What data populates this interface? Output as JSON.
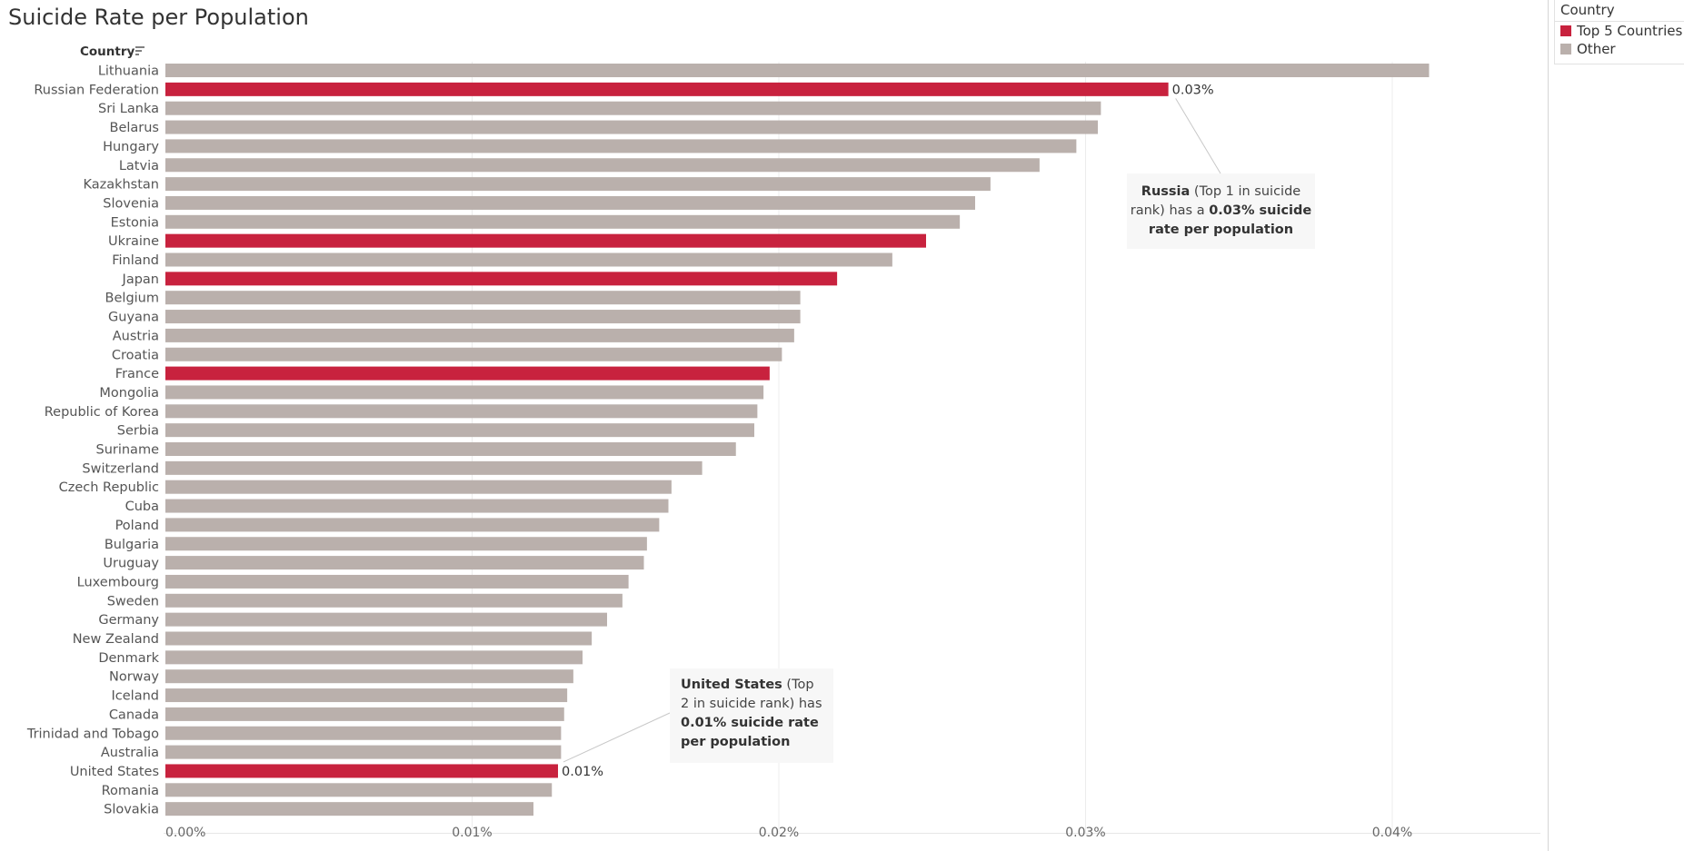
{
  "title": "Suicide Rate per Population",
  "legend": {
    "title": "Country",
    "items": [
      {
        "label": "Top 5 Countries",
        "color": "#c8223e"
      },
      {
        "label": "Other",
        "color": "#bab0ac"
      }
    ]
  },
  "annotations": {
    "russia": {
      "bold1": "Russia",
      "text1": " (Top 1 in suicide rank) has a ",
      "bold2": "0.03% suicide rate per population"
    },
    "us": {
      "bold1": "United States",
      "text1": " (Top 2 in suicide rank) has ",
      "bold2": "0.01% suicide rate per population"
    }
  },
  "chart_data": {
    "type": "bar",
    "orientation": "horizontal",
    "title": "Suicide Rate per Population",
    "ylabel": "Country",
    "xlim": [
      0,
      0.0445
    ],
    "xticks": [
      "0.00%",
      "0.01%",
      "0.02%",
      "0.03%",
      "0.04%"
    ],
    "grid": true,
    "legend_position": "top-right",
    "categories": [
      "Lithuania",
      "Russian Federation",
      "Sri Lanka",
      "Belarus",
      "Hungary",
      "Latvia",
      "Kazakhstan",
      "Slovenia",
      "Estonia",
      "Ukraine",
      "Finland",
      "Japan",
      "Belgium",
      "Guyana",
      "Austria",
      "Croatia",
      "France",
      "Mongolia",
      "Republic of Korea",
      "Serbia",
      "Suriname",
      "Switzerland",
      "Czech Republic",
      "Cuba",
      "Poland",
      "Bulgaria",
      "Uruguay",
      "Luxembourg",
      "Sweden",
      "Germany",
      "New Zealand",
      "Denmark",
      "Norway",
      "Iceland",
      "Canada",
      "Trinidad and Tobago",
      "Australia",
      "United States",
      "Romania",
      "Slovakia"
    ],
    "values": [
      0.0412,
      0.0327,
      0.0305,
      0.0304,
      0.0297,
      0.0285,
      0.0269,
      0.0264,
      0.0259,
      0.0248,
      0.0237,
      0.0219,
      0.0207,
      0.0207,
      0.0205,
      0.0201,
      0.0197,
      0.0195,
      0.0193,
      0.0192,
      0.0186,
      0.0175,
      0.0165,
      0.0164,
      0.0161,
      0.0157,
      0.0156,
      0.0151,
      0.0149,
      0.0144,
      0.0139,
      0.0136,
      0.0133,
      0.0131,
      0.013,
      0.0129,
      0.0129,
      0.0128,
      0.0126,
      0.012
    ],
    "highlight": [
      "Russian Federation",
      "Ukraine",
      "Japan",
      "France",
      "United States"
    ],
    "data_labels": {
      "Russian Federation": "0.03%",
      "United States": "0.01%"
    },
    "colors": {
      "highlight": "#c8223e",
      "other": "#bab0ac"
    }
  }
}
